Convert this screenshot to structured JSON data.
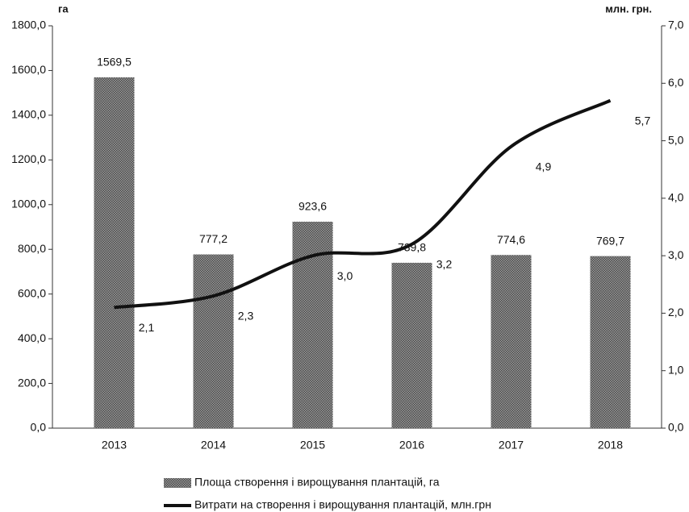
{
  "chart_data": {
    "type": "bar_line",
    "y_unit_label": "га",
    "y2_unit_label": "млн. грн.",
    "categories": [
      "2013",
      "2014",
      "2015",
      "2016",
      "2017",
      "2018"
    ],
    "series": [
      {
        "name": "Площа створення і вирощування плантацій, га",
        "type": "bar",
        "color": "#7a7a7a",
        "values": [
          1569.5,
          777.2,
          923.6,
          739.8,
          774.6,
          769.7
        ],
        "value_labels": [
          "1569,5",
          "777,2",
          "923,6",
          "739,8",
          "774,6",
          "769,7"
        ]
      },
      {
        "name": "Витрати на створення і вирощування плантацій, млн.грн",
        "type": "line",
        "color": "#111111",
        "axis": "y2",
        "values": [
          2.1,
          2.3,
          3.0,
          3.2,
          4.9,
          5.7
        ],
        "value_labels": [
          "2,1",
          "2,3",
          "3,0",
          "3,2",
          "4,9",
          "5,7"
        ]
      }
    ],
    "ylim": [
      0,
      1800
    ],
    "yticks": [
      {
        "value": 0,
        "label": "0,0"
      },
      {
        "value": 200,
        "label": "200,0"
      },
      {
        "value": 400,
        "label": "400,0"
      },
      {
        "value": 600,
        "label": "600,0"
      },
      {
        "value": 800,
        "label": "800,0"
      },
      {
        "value": 1000,
        "label": "1000,0"
      },
      {
        "value": 1200,
        "label": "1200,0"
      },
      {
        "value": 1400,
        "label": "1400,0"
      },
      {
        "value": 1600,
        "label": "1600,0"
      },
      {
        "value": 1800,
        "label": "1800,0"
      }
    ],
    "y2lim": [
      0,
      7
    ],
    "y2ticks": [
      {
        "value": 0,
        "label": "0,0"
      },
      {
        "value": 1,
        "label": "1,0"
      },
      {
        "value": 2,
        "label": "2,0"
      },
      {
        "value": 3,
        "label": "3,0"
      },
      {
        "value": 4,
        "label": "4,0"
      },
      {
        "value": 5,
        "label": "5,0"
      },
      {
        "value": 6,
        "label": "6,0"
      },
      {
        "value": 7,
        "label": "7,0"
      }
    ]
  }
}
